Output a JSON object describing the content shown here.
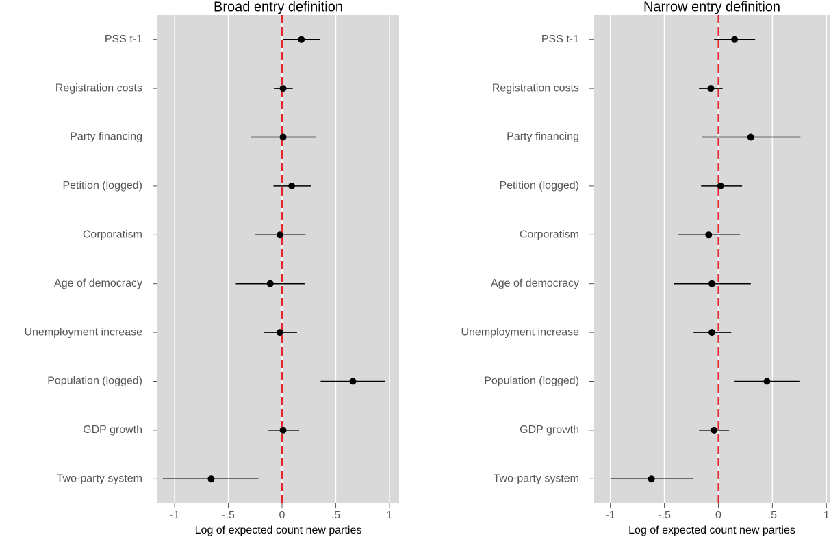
{
  "chart_data": [
    {
      "type": "coefplot",
      "title": "Broad entry definition",
      "xlabel": "Log of expected count new parties",
      "categories": [
        "PSS t-1",
        "Registration costs",
        "Party financing",
        "Petition (logged)",
        "Corporatism",
        "Age of democracy",
        "Unemployment increase",
        "Population (logged)",
        "GDP growth",
        "Two-party system"
      ],
      "values": [
        0.18,
        0.01,
        0.01,
        0.09,
        -0.02,
        -0.11,
        -0.02,
        0.66,
        0.01,
        -0.66
      ],
      "lower": [
        0.01,
        -0.07,
        -0.29,
        -0.08,
        -0.25,
        -0.43,
        -0.17,
        0.36,
        -0.13,
        -1.11
      ],
      "upper": [
        0.35,
        0.1,
        0.32,
        0.27,
        0.22,
        0.21,
        0.14,
        0.96,
        0.16,
        -0.22
      ],
      "xlim": [
        -1.16,
        1.09
      ],
      "xticks": [
        -1,
        {
          "value": -0.5,
          "label": "-.5"
        },
        0,
        {
          "value": 0.5,
          "label": ".5"
        },
        1
      ],
      "refline": 0,
      "refline_color": "#e8232a",
      "color": "#000000",
      "grid": true
    },
    {
      "type": "coefplot",
      "title": "Narrow entry definition",
      "xlabel": "Log of expected count new parties",
      "categories": [
        "PSS t-1",
        "Registration costs",
        "Party financing",
        "Petition (logged)",
        "Corporatism",
        "Age of democracy",
        "Unemployment increase",
        "Population (logged)",
        "GDP growth",
        "Two-party system"
      ],
      "values": [
        0.15,
        -0.07,
        0.3,
        0.02,
        -0.09,
        -0.06,
        -0.06,
        0.45,
        -0.04,
        -0.62
      ],
      "lower": [
        -0.04,
        -0.18,
        -0.15,
        -0.16,
        -0.37,
        -0.41,
        -0.23,
        0.15,
        -0.18,
        -1.0
      ],
      "upper": [
        0.34,
        0.04,
        0.76,
        0.22,
        0.2,
        0.3,
        0.12,
        0.75,
        0.1,
        -0.23
      ],
      "xlim": [
        -1.15,
        1.03
      ],
      "xticks": [
        -1,
        {
          "value": -0.5,
          "label": "-.5"
        },
        0,
        {
          "value": 0.5,
          "label": ".5"
        },
        1
      ],
      "refline": 0,
      "refline_color": "#e8232a",
      "color": "#000000",
      "grid": true
    }
  ]
}
